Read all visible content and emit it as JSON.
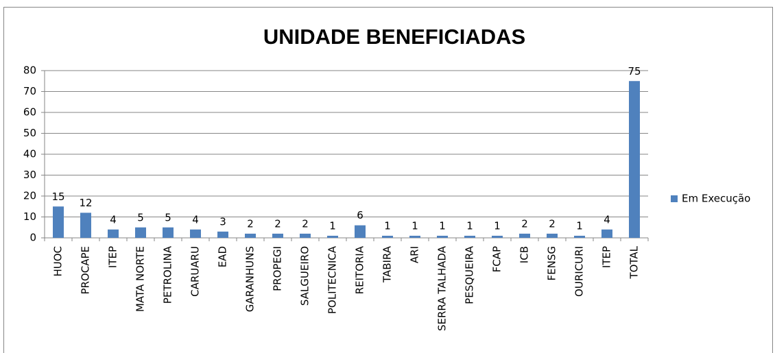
{
  "chart_data": {
    "type": "bar",
    "title": "UNIDADE BENEFICIADAS",
    "categories": [
      "HUOC",
      "PROCAPE",
      "ITEP",
      "MATA NORTE",
      "PETROLINA",
      "CARUARU",
      "EAD",
      "GARANHUNS",
      "PROPEGI",
      "SALGUEIRO",
      "POLITECNICA",
      "REITORIA",
      "TABIRA",
      "ARI",
      "SERRA TALHADA",
      "PESQUEIRA",
      "FCAP",
      "ICB",
      "FENSG",
      "OURICURI",
      "ITEP",
      "TOTAL"
    ],
    "series": [
      {
        "name": "Em Execução",
        "color": "#4f81bd",
        "values": [
          15,
          12,
          4,
          5,
          5,
          4,
          3,
          2,
          2,
          2,
          1,
          6,
          1,
          1,
          1,
          1,
          1,
          2,
          2,
          1,
          4,
          75
        ]
      }
    ],
    "ylim": [
      0,
      80
    ],
    "yticks": [
      0,
      10,
      20,
      30,
      40,
      50,
      60,
      70,
      80
    ],
    "grid": true,
    "legend": "right"
  }
}
